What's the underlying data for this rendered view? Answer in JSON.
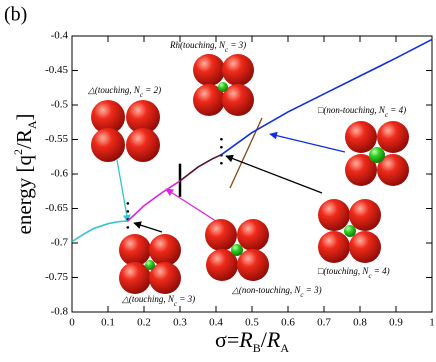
{
  "chart_data": {
    "type": "line",
    "panel_label": "(b)",
    "x_label": {
      "pre": "σ=",
      "a": "R",
      "a_sub": "B",
      "mid": "/",
      "b": "R",
      "b_sub": "A"
    },
    "y_label": {
      "pre": "energy [q",
      "sup": "2",
      "mid": "/R",
      "sub": "A",
      "post": "]"
    },
    "xlim": [
      0,
      1
    ],
    "ylim": [
      -0.8,
      -0.4
    ],
    "xticks": [
      0,
      0.1,
      0.2,
      0.3,
      0.4,
      0.5,
      0.6,
      0.7,
      0.8,
      0.9,
      1
    ],
    "yticks": [
      -0.8,
      -0.75,
      -0.7,
      -0.65,
      -0.6,
      -0.55,
      -0.5,
      -0.45,
      -0.4
    ],
    "series": [
      {
        "color": "#33c6cc",
        "x": [
          0,
          0.03,
          0.06,
          0.1,
          0.13,
          0.155
        ],
        "values": [
          -0.698,
          -0.688,
          -0.679,
          -0.672,
          -0.669,
          -0.668
        ]
      },
      {
        "color": "#e020e0",
        "x": [
          0.155,
          0.2,
          0.25,
          0.3
        ],
        "values": [
          -0.668,
          -0.646,
          -0.627,
          -0.61
        ]
      },
      {
        "color": "#5a1030",
        "x": [
          0.3,
          0.35,
          0.39,
          0.415
        ],
        "values": [
          -0.61,
          -0.59,
          -0.578,
          -0.572
        ]
      },
      {
        "color": "#1030e0",
        "x": [
          0.415,
          0.5,
          0.6,
          0.7,
          0.8,
          0.9,
          1
        ],
        "values": [
          -0.572,
          -0.54,
          -0.51,
          -0.484,
          -0.458,
          -0.432,
          -0.405
        ]
      }
    ],
    "annotations": [
      {
        "pre": "Rh(touching, N",
        "sub": "c",
        "post": " = 3)"
      },
      {
        "pre": "△(touching, N",
        "sub": "c",
        "post": " = 2)"
      },
      {
        "pre": "□(non-touching, N",
        "sub": "c",
        "post": " = 4)"
      },
      {
        "pre": "□(touching, N",
        "sub": "c",
        "post": " = 4)"
      },
      {
        "pre": "△(touching, N",
        "sub": "c",
        "post": " = 3)"
      },
      {
        "pre": "△(non-touching, N",
        "sub": "c",
        "post": " = 3)"
      }
    ]
  }
}
